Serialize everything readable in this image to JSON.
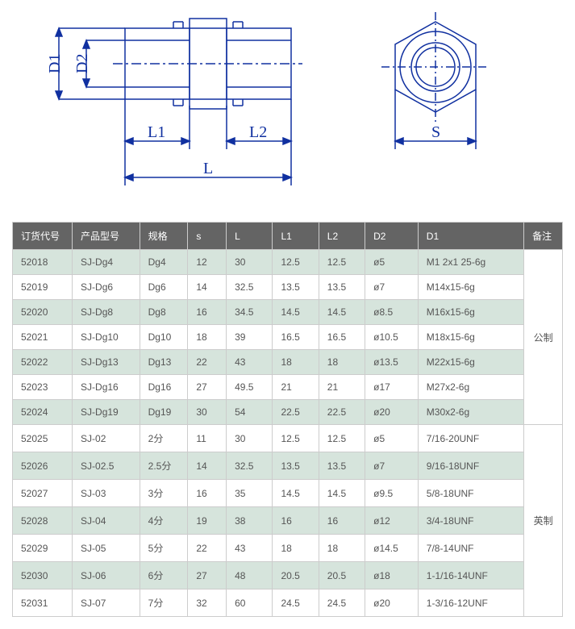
{
  "diagram": {
    "labels": {
      "d1": "D1",
      "d2": "D2",
      "l1": "L1",
      "l2": "L2",
      "l": "L",
      "s": "S"
    },
    "line_color": "#1030a0",
    "line_width": 1.5
  },
  "table": {
    "headers": [
      "订货代号",
      "产品型号",
      "规格",
      "s",
      "L",
      "L1",
      "L2",
      "D2",
      "D1",
      "备注"
    ],
    "groups": [
      {
        "remark": "公制",
        "rows": [
          [
            "52018",
            "SJ-Dg4",
            "Dg4",
            "12",
            "30",
            "12.5",
            "12.5",
            "ø5",
            "M1 2x1 25-6g"
          ],
          [
            "52019",
            "SJ-Dg6",
            "Dg6",
            "14",
            "32.5",
            "13.5",
            "13.5",
            "ø7",
            "M14x15-6g"
          ],
          [
            "52020",
            "SJ-Dg8",
            "Dg8",
            "16",
            "34.5",
            "14.5",
            "14.5",
            "ø8.5",
            "M16x15-6g"
          ],
          [
            "52021",
            "SJ-Dg10",
            "Dg10",
            "18",
            "39",
            "16.5",
            "16.5",
            "ø10.5",
            "M18x15-6g"
          ],
          [
            "52022",
            "SJ-Dg13",
            "Dg13",
            "22",
            "43",
            "18",
            "18",
            "ø13.5",
            "M22x15-6g"
          ],
          [
            "52023",
            "SJ-Dg16",
            "Dg16",
            "27",
            "49.5",
            "21",
            "21",
            "ø17",
            "M27x2-6g"
          ],
          [
            "52024",
            "SJ-Dg19",
            "Dg19",
            "30",
            "54",
            "22.5",
            "22.5",
            "ø20",
            "M30x2-6g"
          ]
        ]
      },
      {
        "remark": "英制",
        "rows": [
          [
            "52025",
            "SJ-02",
            "2分",
            "11",
            "30",
            "12.5",
            "12.5",
            "ø5",
            "7/16-20UNF"
          ],
          [
            "52026",
            "SJ-02.5",
            "2.5分",
            "14",
            "32.5",
            "13.5",
            "13.5",
            "ø7",
            "9/16-18UNF"
          ],
          [
            "52027",
            "SJ-03",
            "3分",
            "16",
            "35",
            "14.5",
            "14.5",
            "ø9.5",
            "5/8-18UNF"
          ],
          [
            "52028",
            "SJ-04",
            "4分",
            "19",
            "38",
            "16",
            "16",
            "ø12",
            "3/4-18UNF"
          ],
          [
            "52029",
            "SJ-05",
            "5分",
            "22",
            "43",
            "18",
            "18",
            "ø14.5",
            "7/8-14UNF"
          ],
          [
            "52030",
            "SJ-06",
            "6分",
            "27",
            "48",
            "20.5",
            "20.5",
            "ø18",
            "1-1/16-14UNF"
          ],
          [
            "52031",
            "SJ-07",
            "7分",
            "32",
            "60",
            "24.5",
            "24.5",
            "ø20",
            "1-3/16-12UNF"
          ]
        ]
      }
    ],
    "col_widths": [
      "62",
      "70",
      "50",
      "40",
      "48",
      "48",
      "48",
      "55",
      "110",
      "40"
    ],
    "header_bg": "#646464",
    "header_color": "#ffffff",
    "row_even_bg": "#d6e4dc",
    "row_odd_bg": "#ffffff",
    "border_color": "#cccccc",
    "text_color": "#555555"
  }
}
